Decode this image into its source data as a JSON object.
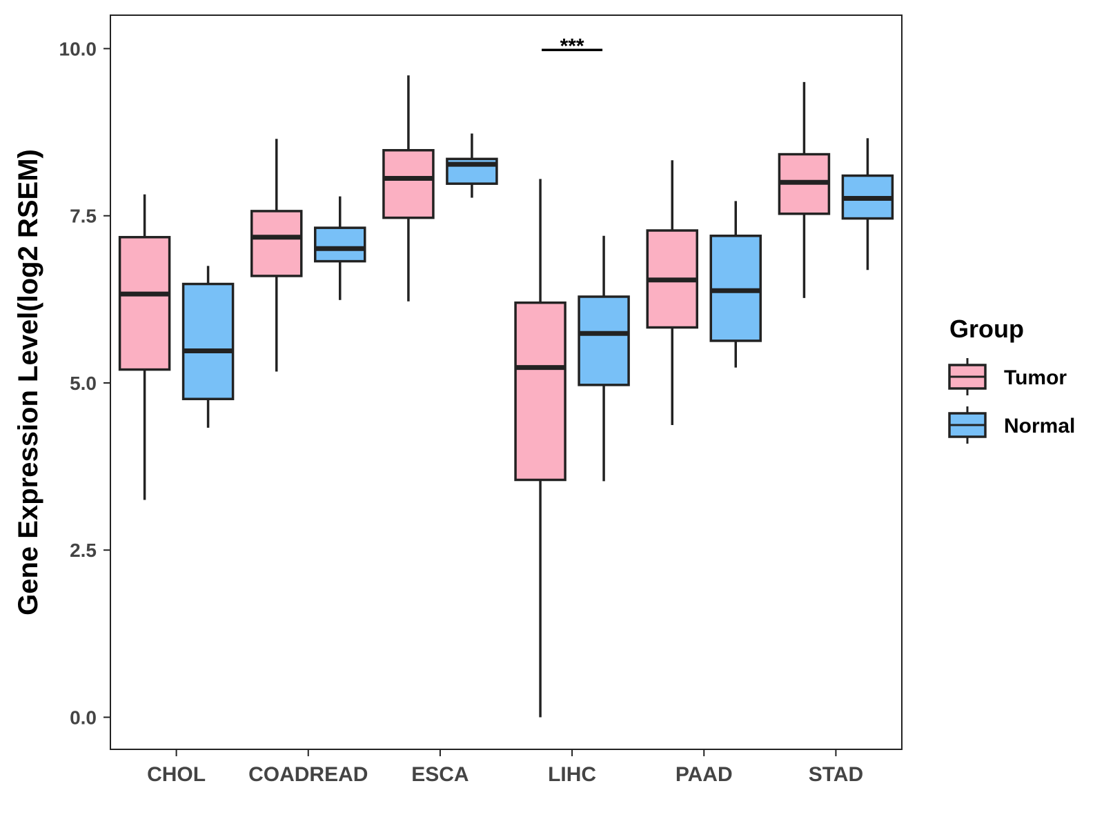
{
  "chart_data": {
    "type": "boxplot",
    "title": "",
    "xlabel": "",
    "ylabel": "Gene Expression Level(log2 RSEM)",
    "ylim": [
      -0.48,
      10.5
    ],
    "yticks": [
      0.0,
      2.5,
      5.0,
      7.5,
      10.0
    ],
    "ytick_labels": [
      "0.0",
      "2.5",
      "5.0",
      "7.5",
      "10.0"
    ],
    "categories": [
      "CHOL",
      "COADREAD",
      "ESCA",
      "LIHC",
      "PAAD",
      "STAD"
    ],
    "legend": {
      "title": "Group",
      "position": "right"
    },
    "series": [
      {
        "name": "Tumor",
        "color": "#fbb0c2",
        "boxes": [
          {
            "min": 3.25,
            "q1": 5.2,
            "median": 6.33,
            "q3": 7.18,
            "max": 7.82
          },
          {
            "min": 5.17,
            "q1": 6.6,
            "median": 7.18,
            "q3": 7.57,
            "max": 8.65
          },
          {
            "min": 6.22,
            "q1": 7.47,
            "median": 8.06,
            "q3": 8.48,
            "max": 9.6
          },
          {
            "min": 0.0,
            "q1": 3.55,
            "median": 5.23,
            "q3": 6.2,
            "max": 8.05
          },
          {
            "min": 4.37,
            "q1": 5.83,
            "median": 6.54,
            "q3": 7.28,
            "max": 8.33
          },
          {
            "min": 6.27,
            "q1": 7.53,
            "median": 8.0,
            "q3": 8.42,
            "max": 9.5
          }
        ]
      },
      {
        "name": "Normal",
        "color": "#78c0f7",
        "boxes": [
          {
            "min": 4.33,
            "q1": 4.76,
            "median": 5.48,
            "q3": 6.48,
            "max": 6.75
          },
          {
            "min": 6.24,
            "q1": 6.82,
            "median": 7.01,
            "q3": 7.32,
            "max": 7.79
          },
          {
            "min": 7.77,
            "q1": 7.98,
            "median": 8.27,
            "q3": 8.35,
            "max": 8.73
          },
          {
            "min": 3.53,
            "q1": 4.97,
            "median": 5.74,
            "q3": 6.29,
            "max": 7.2
          },
          {
            "min": 5.23,
            "q1": 5.63,
            "median": 6.38,
            "q3": 7.2,
            "max": 7.72
          },
          {
            "min": 6.69,
            "q1": 7.46,
            "median": 7.76,
            "q3": 8.1,
            "max": 8.66
          }
        ]
      }
    ],
    "annotations": [
      {
        "category": "LIHC",
        "text": "***",
        "y": 9.98
      }
    ]
  }
}
